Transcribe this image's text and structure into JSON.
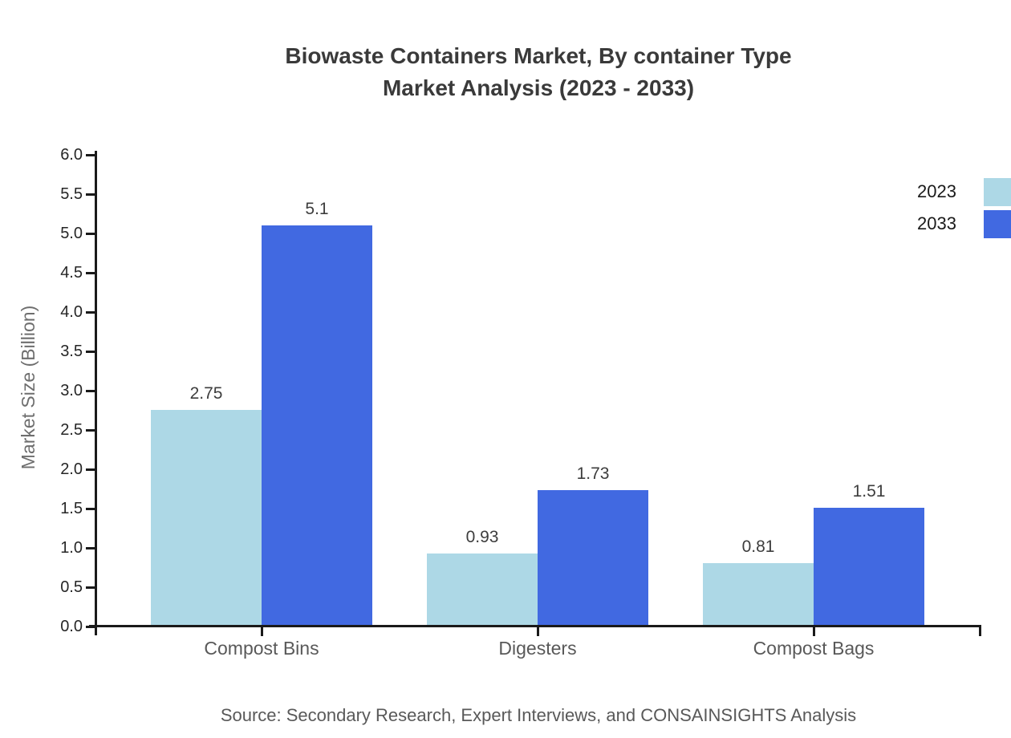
{
  "chart_data": {
    "type": "bar",
    "title": "Biowaste Containers Market, By container Type",
    "subtitle": "Market Analysis (2023 - 2033)",
    "categories": [
      "Compost Bins",
      "Digesters",
      "Compost Bags"
    ],
    "series": [
      {
        "name": "2023",
        "color": "#ADD8E6",
        "values": [
          2.75,
          0.93,
          0.81
        ],
        "labels": [
          "2.75",
          "0.93",
          "0.81"
        ]
      },
      {
        "name": "2033",
        "color": "#4169E1",
        "values": [
          5.1,
          1.73,
          1.51
        ],
        "labels": [
          "5.1",
          "1.73",
          "1.51"
        ]
      }
    ],
    "xlabel": "",
    "ylabel": "Market Size (Billion)",
    "ylim": [
      0,
      6
    ],
    "yticks": [
      0,
      0.5,
      1,
      1.5,
      2,
      2.5,
      3,
      3.5,
      4,
      4.5,
      5,
      5.5,
      6
    ],
    "grid": false,
    "legend_position": "top-right-outside",
    "axis_color": "#1a1a1a",
    "source": "Source: Secondary Research, Expert Interviews, and CONSAINSIGHTS Analysis"
  }
}
